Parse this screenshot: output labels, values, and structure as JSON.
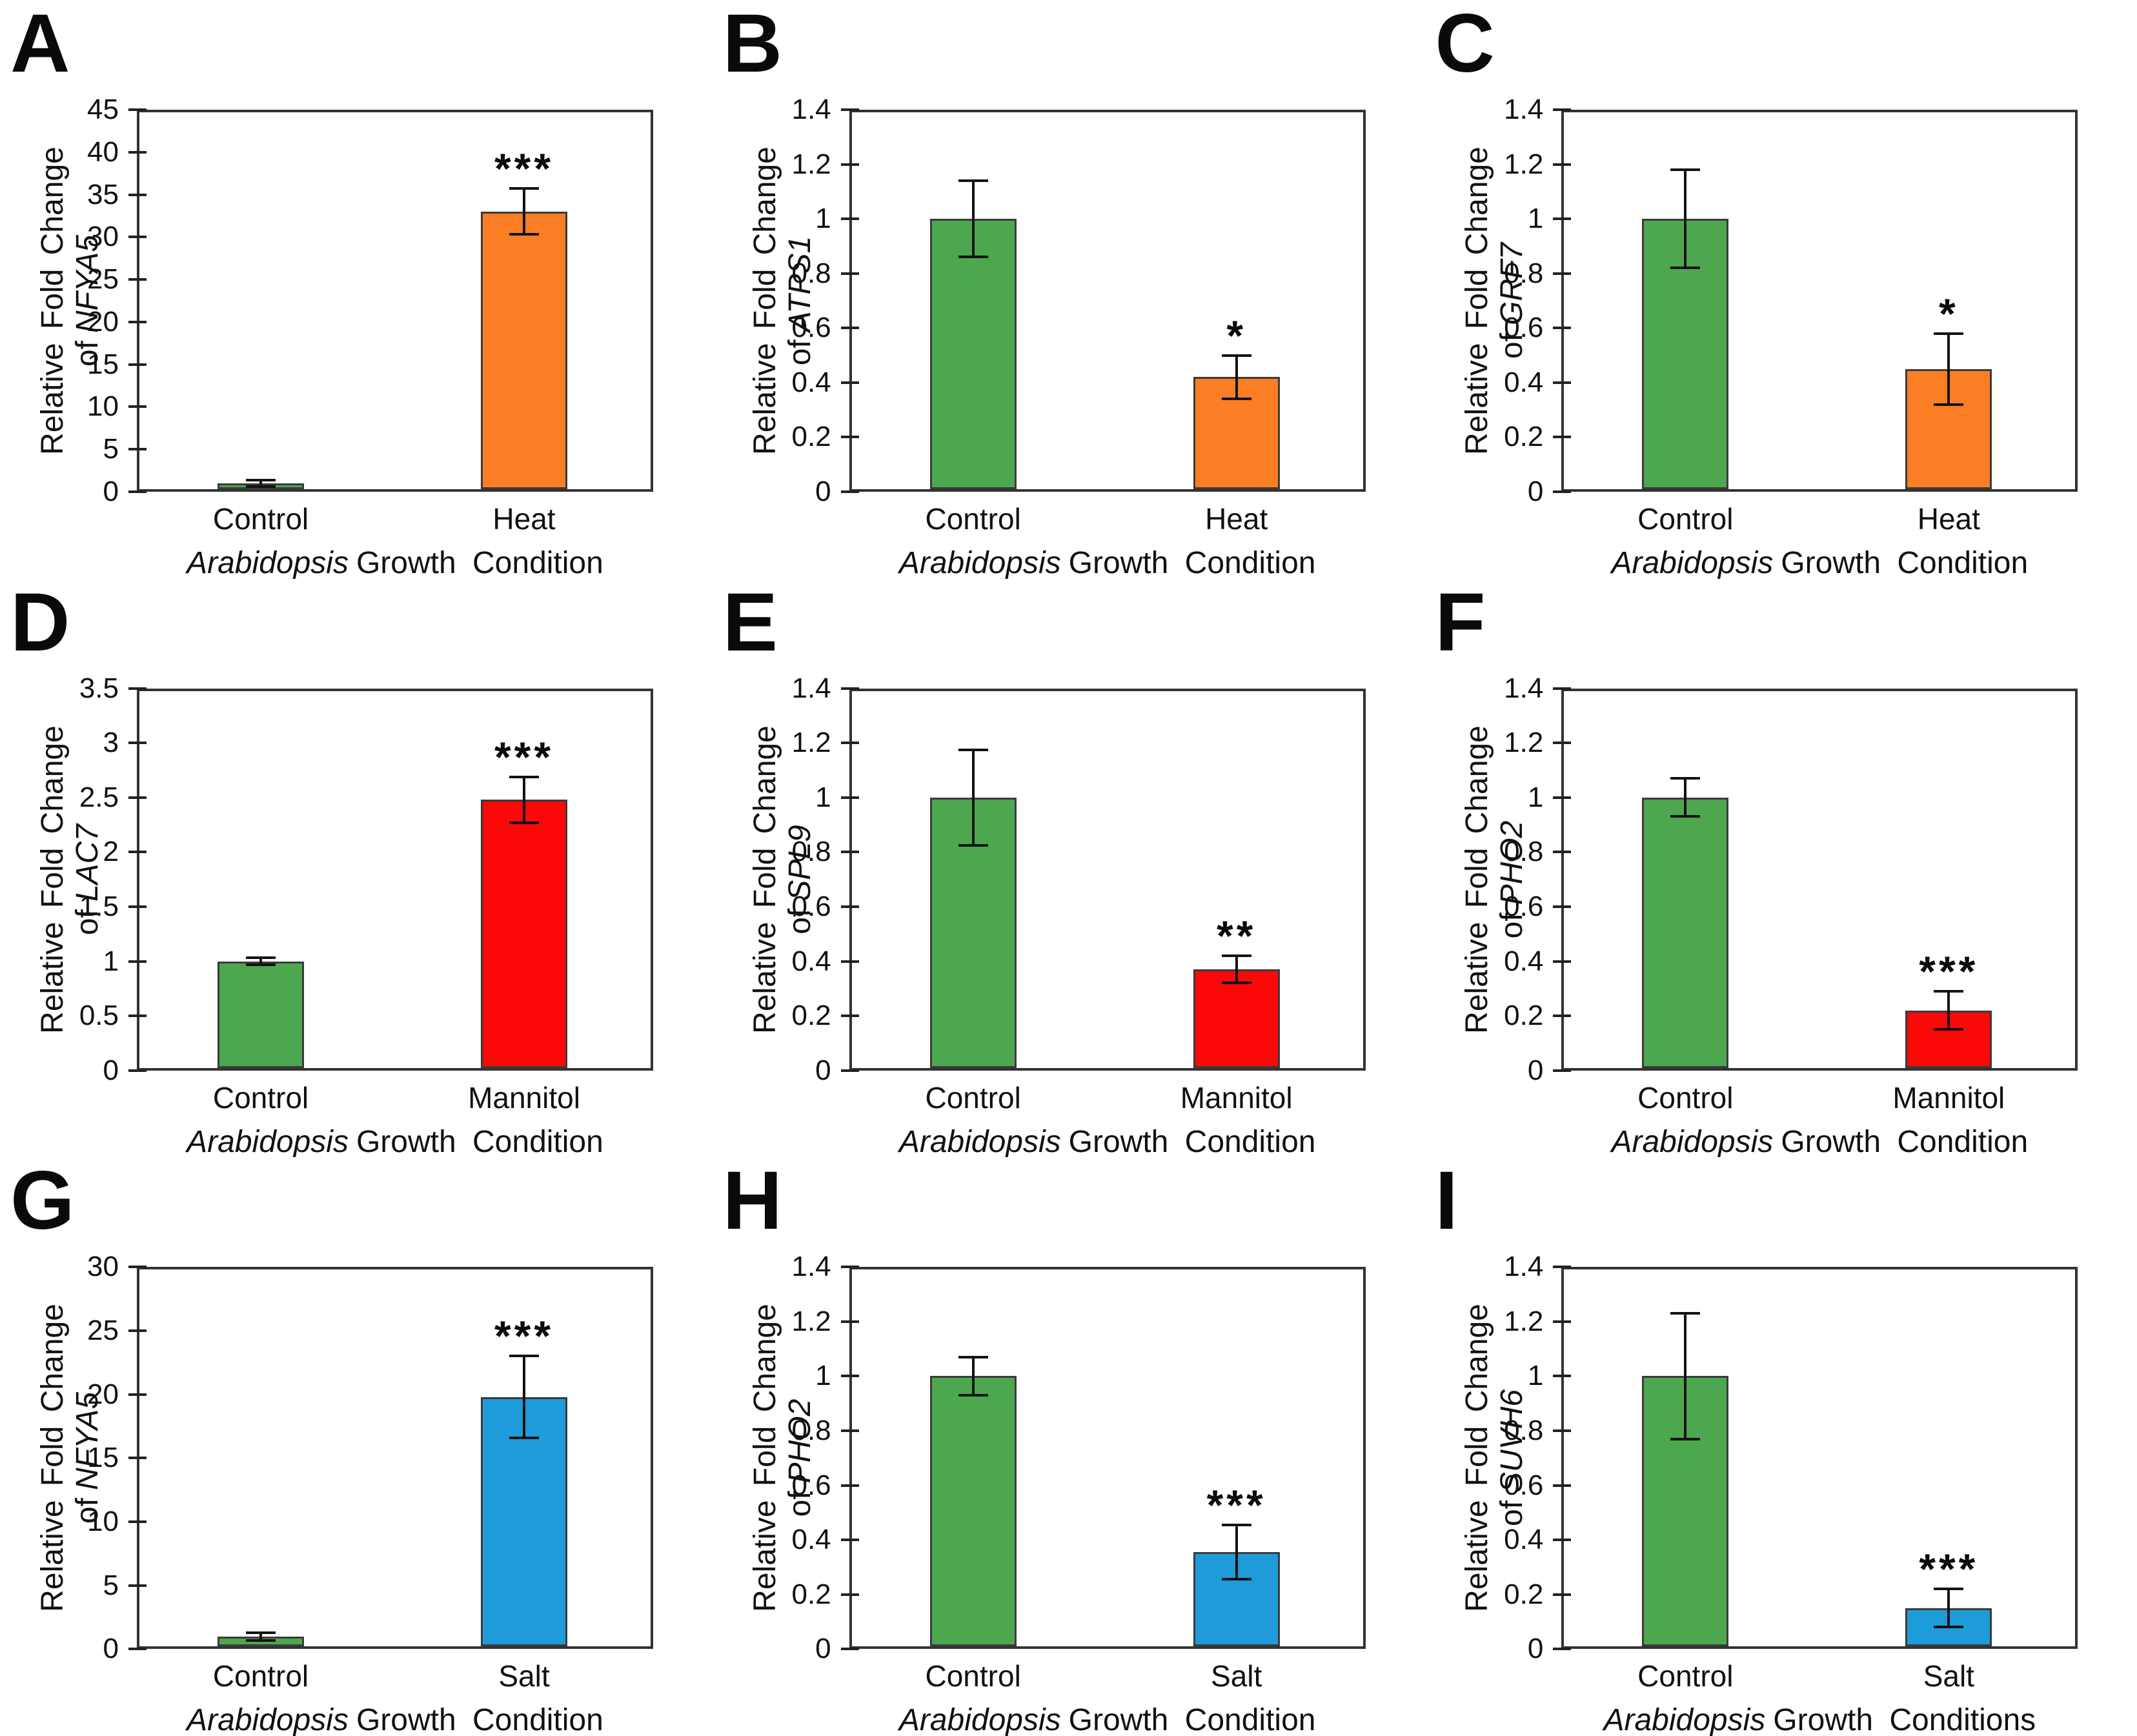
{
  "figure": {
    "background": "#FFFFFF",
    "text_color": "#111111",
    "axis_color": "#333333",
    "condition_colors": {
      "control": "#4DA74F",
      "heat": "#FB7E25",
      "mannitol": "#FB0808",
      "salt": "#1E9CD9"
    }
  },
  "chart_data": [
    {
      "panel": "A",
      "type": "bar",
      "gene": "NFYA5",
      "ylabel_prefix": "Relative Fold Change of",
      "xlabel_italic": "Arabidopsis",
      "xlabel_rest": "Growth Condition",
      "categories": [
        "Control",
        "Heat"
      ],
      "values": [
        1.0,
        33.0
      ],
      "errors": [
        0.4,
        2.7
      ],
      "bar_colors": [
        "#4DA74F",
        "#FB7E25"
      ],
      "significance": {
        "index": 1,
        "label": "***"
      },
      "ylim": [
        0,
        45
      ],
      "yticks": [
        "0",
        "5",
        "10",
        "15",
        "20",
        "25",
        "30",
        "35",
        "40",
        "45"
      ],
      "grid": false,
      "legend": false
    },
    {
      "panel": "B",
      "type": "bar",
      "gene": "ATPS1",
      "ylabel_prefix": "Relative Fold Change of",
      "xlabel_italic": "Arabidopsis",
      "xlabel_rest": "Growth Condition",
      "categories": [
        "Control",
        "Heat"
      ],
      "values": [
        1.0,
        0.42
      ],
      "errors": [
        0.14,
        0.08
      ],
      "bar_colors": [
        "#4DA74F",
        "#FB7E25"
      ],
      "significance": {
        "index": 1,
        "label": "*"
      },
      "ylim": [
        0,
        1.4
      ],
      "yticks": [
        "0",
        "0.2",
        "0.4",
        "0.6",
        "0.8",
        "1",
        "1.2",
        "1.4"
      ],
      "grid": false,
      "legend": false
    },
    {
      "panel": "C",
      "type": "bar",
      "gene": "GRF7",
      "ylabel_prefix": "Relative Fold Change of",
      "xlabel_italic": "Arabidopsis",
      "xlabel_rest": "Growth Condition",
      "categories": [
        "Control",
        "Heat"
      ],
      "values": [
        1.0,
        0.45
      ],
      "errors": [
        0.18,
        0.13
      ],
      "bar_colors": [
        "#4DA74F",
        "#FB7E25"
      ],
      "significance": {
        "index": 1,
        "label": "*"
      },
      "ylim": [
        0,
        1.4
      ],
      "yticks": [
        "0",
        "0.2",
        "0.4",
        "0.6",
        "0.8",
        "1",
        "1.2",
        "1.4"
      ],
      "grid": false,
      "legend": false
    },
    {
      "panel": "D",
      "type": "bar",
      "gene": "LAC7",
      "ylabel_prefix": "Relative Fold Change of",
      "xlabel_italic": "Arabidopsis",
      "xlabel_rest": "Growth Condition",
      "categories": [
        "Control",
        "Mannitol"
      ],
      "values": [
        1.0,
        2.48
      ],
      "errors": [
        0.035,
        0.21
      ],
      "bar_colors": [
        "#4DA74F",
        "#FB0808"
      ],
      "significance": {
        "index": 1,
        "label": "***"
      },
      "ylim": [
        0,
        3.5
      ],
      "yticks": [
        "0",
        "0.5",
        "1",
        "1.5",
        "2",
        "2.5",
        "3",
        "3.5"
      ],
      "grid": false,
      "legend": false
    },
    {
      "panel": "E",
      "type": "bar",
      "gene": "SPL9",
      "ylabel_prefix": "Relative Fold Change of",
      "xlabel_italic": "Arabidopsis",
      "xlabel_rest": "Growth Condition",
      "categories": [
        "Control",
        "Mannitol"
      ],
      "values": [
        1.0,
        0.37
      ],
      "errors": [
        0.175,
        0.05
      ],
      "bar_colors": [
        "#4DA74F",
        "#FB0808"
      ],
      "significance": {
        "index": 1,
        "label": "**"
      },
      "ylim": [
        0,
        1.4
      ],
      "yticks": [
        "0",
        "0.2",
        "0.4",
        "0.6",
        "0.8",
        "1",
        "1.2",
        "1.4"
      ],
      "grid": false,
      "legend": false
    },
    {
      "panel": "F",
      "type": "bar",
      "gene": "PHO2",
      "ylabel_prefix": "Relative Fold Change of",
      "xlabel_italic": "Arabidopsis",
      "xlabel_rest": "Growth Condition",
      "categories": [
        "Control",
        "Mannitol"
      ],
      "values": [
        1.0,
        0.22
      ],
      "errors": [
        0.07,
        0.07
      ],
      "bar_colors": [
        "#4DA74F",
        "#FB0808"
      ],
      "significance": {
        "index": 1,
        "label": "***"
      },
      "ylim": [
        0,
        1.4
      ],
      "yticks": [
        "0",
        "0.2",
        "0.4",
        "0.6",
        "0.8",
        "1",
        "1.2",
        "1.4"
      ],
      "grid": false,
      "legend": false
    },
    {
      "panel": "G",
      "type": "bar",
      "gene": "NFYA5",
      "ylabel_prefix": "Relative Fold Change of",
      "xlabel_italic": "Arabidopsis",
      "xlabel_rest": "Growth Condition",
      "categories": [
        "Control",
        "Salt"
      ],
      "values": [
        1.0,
        19.8
      ],
      "errors": [
        0.3,
        3.2
      ],
      "bar_colors": [
        "#4DA74F",
        "#1E9CD9"
      ],
      "significance": {
        "index": 1,
        "label": "***"
      },
      "ylim": [
        0,
        30
      ],
      "yticks": [
        "0",
        "5",
        "10",
        "15",
        "20",
        "25",
        "30"
      ],
      "grid": false,
      "legend": false
    },
    {
      "panel": "H",
      "type": "bar",
      "gene": "PHO2",
      "ylabel_prefix": "Relative Fold Change of",
      "xlabel_italic": "Arabidopsis",
      "xlabel_rest": "Growth Condition",
      "categories": [
        "Control",
        "Salt"
      ],
      "values": [
        1.0,
        0.355
      ],
      "errors": [
        0.07,
        0.1
      ],
      "bar_colors": [
        "#4DA74F",
        "#1E9CD9"
      ],
      "significance": {
        "index": 1,
        "label": "***"
      },
      "ylim": [
        0,
        1.4
      ],
      "yticks": [
        "0",
        "0.2",
        "0.4",
        "0.6",
        "0.8",
        "1",
        "1.2",
        "1.4"
      ],
      "grid": false,
      "legend": false
    },
    {
      "panel": "I",
      "type": "bar",
      "gene": "SUVH6",
      "ylabel_prefix": "Relative Fold Change of",
      "xlabel_italic": "Arabidopsis",
      "xlabel_rest": "Growth Conditions",
      "categories": [
        "Control",
        "Salt"
      ],
      "values": [
        1.0,
        0.15
      ],
      "errors": [
        0.23,
        0.07
      ],
      "bar_colors": [
        "#4DA74F",
        "#1E9CD9"
      ],
      "significance": {
        "index": 1,
        "label": "***"
      },
      "ylim": [
        0,
        1.4
      ],
      "yticks": [
        "0",
        "0.2",
        "0.4",
        "0.6",
        "0.8",
        "1",
        "1.2",
        "1.4"
      ],
      "grid": false,
      "legend": false
    }
  ]
}
